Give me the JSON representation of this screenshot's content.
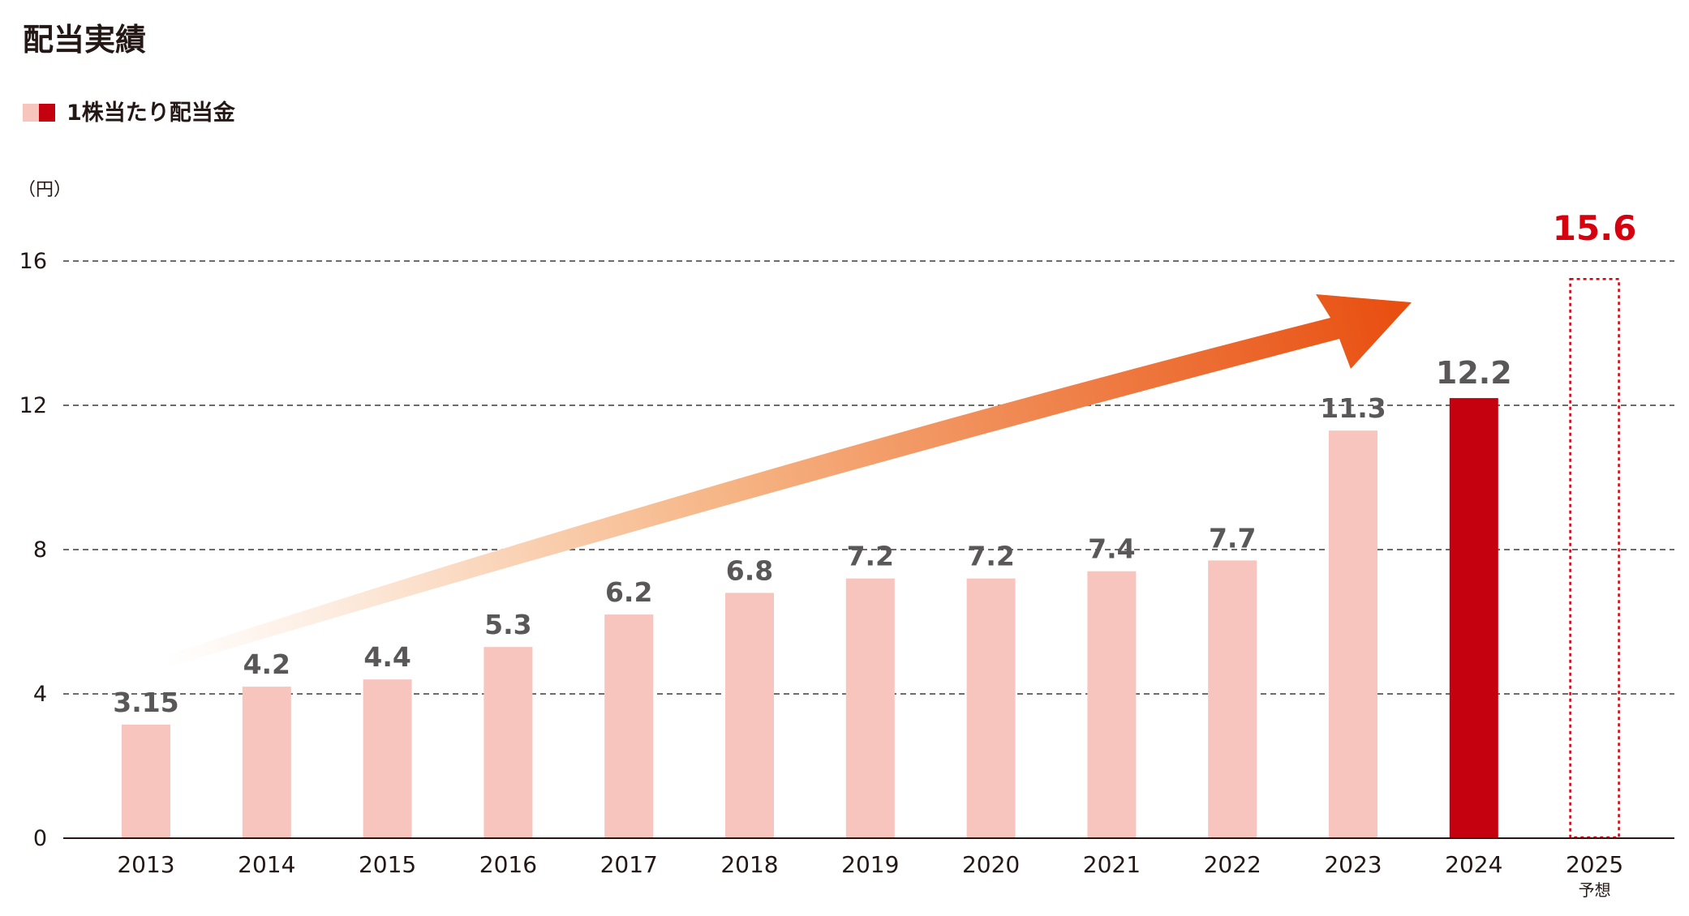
{
  "chart_data": {
    "type": "bar",
    "title": "配当実績",
    "legend": "1株当たり配当金",
    "unit_label": "（円）",
    "categories": [
      "2013",
      "2014",
      "2015",
      "2016",
      "2017",
      "2018",
      "2019",
      "2020",
      "2021",
      "2022",
      "2023",
      "2024",
      "2025"
    ],
    "values": [
      3.15,
      4.2,
      4.4,
      5.3,
      6.2,
      6.8,
      7.2,
      7.2,
      7.4,
      7.7,
      11.3,
      12.2,
      15.6
    ],
    "value_labels": [
      "3.15",
      "4.2",
      "4.4",
      "5.3",
      "6.2",
      "6.8",
      "7.2",
      "7.2",
      "7.4",
      "7.7",
      "11.3",
      "12.2",
      "15.6"
    ],
    "forecast_note": "予想",
    "highlight_category": "2024",
    "forecast_category": "2025",
    "yticks": [
      0,
      4,
      8,
      12,
      16
    ],
    "ylim": [
      0,
      16
    ],
    "grid": "dashed horizontal",
    "legend_position": "top-left",
    "colors": {
      "bar": "#f7c5be",
      "highlight": "#c5000f",
      "forecast": "#d7000f",
      "label": "#595757",
      "text": "#231815",
      "arrow_start": "#fbe3d2",
      "arrow_end": "#e84d0e"
    }
  }
}
